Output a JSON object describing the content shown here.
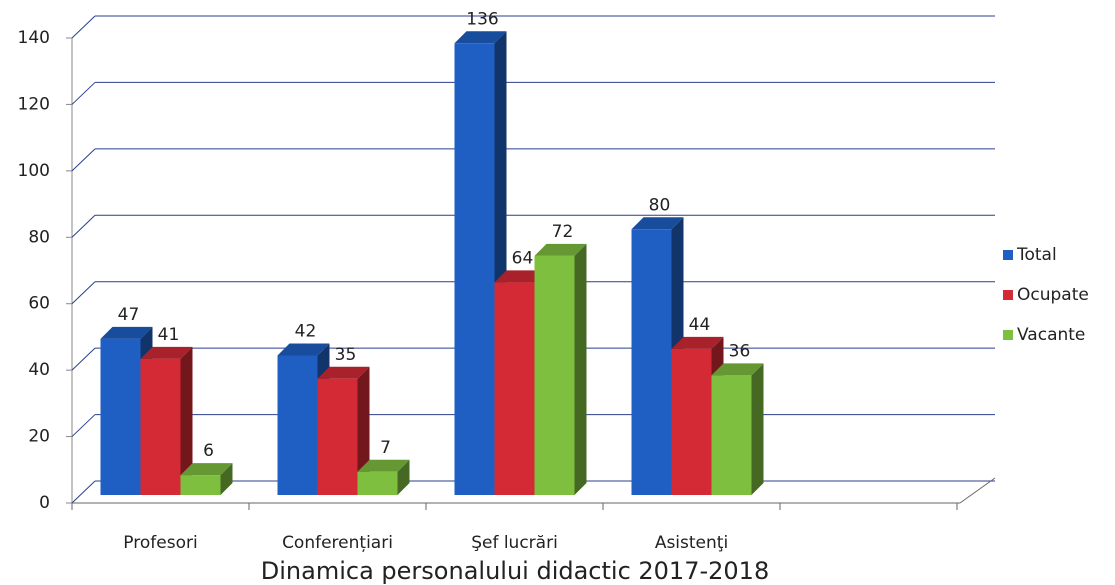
{
  "chart_data": {
    "type": "bar3d",
    "title": "Dinamica personalului didactic 2017-2018",
    "categories": [
      "Profesori",
      "Conferențiari",
      "Şef lucrări",
      "Asistenţi"
    ],
    "series": [
      {
        "name": "Total",
        "color": "#1f5fc4",
        "values": [
          47,
          42,
          136,
          80
        ]
      },
      {
        "name": "Ocupate",
        "color": "#d42a35",
        "values": [
          41,
          35,
          64,
          44
        ]
      },
      {
        "name": "Vacante",
        "color": "#7fbf3f",
        "values": [
          6,
          7,
          72,
          36
        ]
      }
    ],
    "ylim": [
      0,
      140
    ],
    "yticks": [
      0,
      20,
      40,
      60,
      80,
      100,
      120,
      140
    ],
    "grid": true,
    "legend": "right"
  }
}
